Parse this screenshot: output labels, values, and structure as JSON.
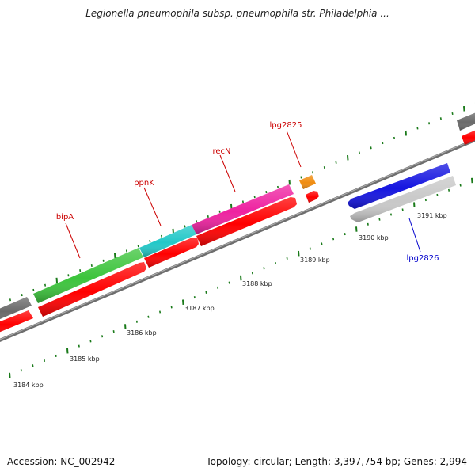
{
  "title": "Legionella pneumophila subsp. pneumophila str. Philadelphia ...",
  "footer": {
    "accession": "Accession: NC_002942",
    "topology": "Topology: circular; Length: 3,397,754 bp; Genes: 2,994"
  },
  "colors": {
    "backbone": "#808080",
    "tick": "#1a7a1a",
    "gene_label_forward": "#cc0000",
    "gene_label_reverse": "#0000cc",
    "cds": "#ff0000"
  },
  "scale_labels": [
    {
      "label": "3184 kbp",
      "kbp": 3184
    },
    {
      "label": "3185 kbp",
      "kbp": 3185
    },
    {
      "label": "3186 kbp",
      "kbp": 3186
    },
    {
      "label": "3187 kbp",
      "kbp": 3187
    },
    {
      "label": "3188 kbp",
      "kbp": 3188
    },
    {
      "label": "3189 kbp",
      "kbp": 3189
    },
    {
      "label": "3190 kbp",
      "kbp": 3190
    },
    {
      "label": "3191 kbp",
      "kbp": 3191
    }
  ],
  "gene_labels": [
    {
      "label": "bipA",
      "strand": "forward"
    },
    {
      "label": "ppnK",
      "strand": "forward"
    },
    {
      "label": "recN",
      "strand": "forward"
    },
    {
      "label": "lpg2825",
      "strand": "forward"
    },
    {
      "label": "lpg2826",
      "strand": "reverse"
    }
  ],
  "features": [
    {
      "name": "gene-grey-left",
      "type": "gene",
      "strand": "forward",
      "color": "#6a6a6a"
    },
    {
      "name": "gene-bipA",
      "type": "gene",
      "strand": "forward",
      "color": "#3cc43c"
    },
    {
      "name": "gene-ppnK",
      "type": "gene",
      "strand": "forward",
      "color": "#22c8c8"
    },
    {
      "name": "gene-recN",
      "type": "gene",
      "strand": "forward",
      "color": "#ee22a0"
    },
    {
      "name": "gene-lpg2825",
      "type": "gene",
      "strand": "forward",
      "color": "#f08c10"
    },
    {
      "name": "gene-grey-right",
      "type": "gene",
      "strand": "forward",
      "color": "#6a6a6a"
    },
    {
      "name": "gene-blue",
      "type": "gene",
      "strand": "reverse",
      "color": "#1515e0"
    },
    {
      "name": "gene-lpg2826",
      "type": "gene",
      "strand": "reverse",
      "color": "#c8c8c8"
    },
    {
      "name": "cds-left",
      "type": "CDS",
      "strand": "forward",
      "color": "#ff0000"
    },
    {
      "name": "cds-bipA",
      "type": "CDS",
      "strand": "forward",
      "color": "#ff0000"
    },
    {
      "name": "cds-ppnK",
      "type": "CDS",
      "strand": "forward",
      "color": "#ff0000"
    },
    {
      "name": "cds-recN",
      "type": "CDS",
      "strand": "forward",
      "color": "#ff0000"
    },
    {
      "name": "cds-lpg2825",
      "type": "CDS",
      "strand": "forward",
      "color": "#ff0000"
    },
    {
      "name": "cds-right",
      "type": "CDS",
      "strand": "forward",
      "color": "#ff0000"
    }
  ]
}
